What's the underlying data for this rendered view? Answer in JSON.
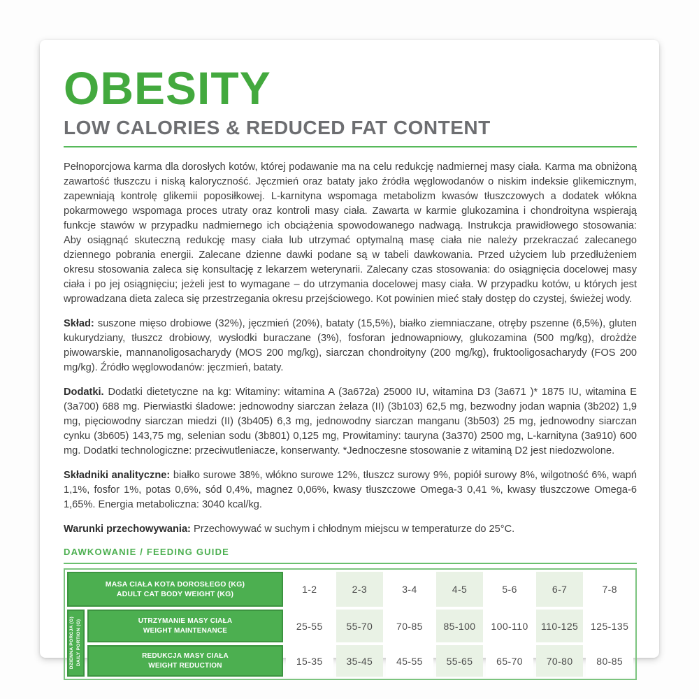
{
  "header": {
    "title": "OBESITY",
    "subtitle": "LOW CALORIES & REDUCED FAT CONTENT"
  },
  "description": "Pełnoporcjowa karma dla dorosłych kotów, której podawanie ma na celu redukcję nadmiernej masy ciała. Karma ma obniżoną zawartość tłuszczu i niską kaloryczność. Jęczmień oraz bataty jako źródła węglowodanów o niskim indeksie glikemicznym, zapewniają kontrolę glikemii poposiłkowej. L-karnityna wspomaga metabolizm kwasów tłuszczowych a dodatek włókna pokarmowego wspomaga proces utraty oraz kontroli masy ciała. Zawarta w karmie glukozamina i chondroityna wspierają funkcje stawów w przypadku nadmiernego ich obciążenia spowodowanego nadwagą. Instrukcja prawidłowego stosowania: Aby osiągnąć skuteczną redukcję masy ciała lub utrzymać optymalną masę ciała nie należy przekraczać zalecanego dziennego pobrania energii. Zalecane dzienne dawki podane są w tabeli dawkowania. Przed użyciem lub przedłużeniem okresu stosowania zaleca się konsultację z lekarzem weterynarii. Zalecany czas stosowania: do osiągnięcia docelowej masy ciała i po jej osiągnięciu; jeżeli jest to wymagane – do utrzymania docelowej masy ciała. W przypadku kotów, u których jest wprowadzana dieta zaleca się przestrzegania okresu przejściowego. Kot powinien mieć stały dostęp do czystej, świeżej wody.",
  "sections": [
    {
      "label": "Skład:",
      "text": "suszone mięso drobiowe (32%), jęczmień (20%), bataty (15,5%), białko ziemniaczane, otręby pszenne (6,5%), gluten kukurydziany, tłuszcz drobiowy, wysłodki buraczane (3%), fosforan jednowapniowy, glukozamina (500 mg/kg), drożdże piwowarskie, mannanoligosacharydy (MOS 200 mg/kg), siarczan chondroityny (200 mg/kg), fruktooligosacharydy (FOS 200 mg/kg). Źródło węglowodanów: jęczmień, bataty."
    },
    {
      "label": "Dodatki.",
      "text": "Dodatki dietetyczne na kg: Witaminy: witamina A (3a672a) 25000 IU, witamina D3 (3a671 )* 1875 IU, witamina E (3a700) 688 mg. Pierwiastki śladowe: jednowodny siarczan żelaza (II) (3b103) 62,5 mg, bezwodny jodan wapnia (3b202) 1,9 mg, pięciowodny siarczan miedzi (II) (3b405) 6,3 mg, jednowodny siarczan manganu (3b503) 25 mg, jednowodny siarczan cynku (3b605) 143,75 mg, selenian sodu (3b801) 0,125 mg, Prowitaminy: tauryna (3a370) 2500 mg, L-karnityna (3a910) 600 mg. Dodatki technologiczne: przeciwutleniacze, konserwanty. *Jednoczesne stosowanie z witaminą D2 jest niedozwolone."
    },
    {
      "label": "Składniki analityczne:",
      "text": "białko surowe 38%, włókno surowe 12%, tłuszcz surowy 9%, popiół surowy 8%, wilgotność 6%, wapń 1,1%, fosfor 1%, potas 0,6%, sód 0,4%, magnez 0,06%, kwasy tłuszczowe Omega-3 0,41 %, kwasy tłuszczowe Omega-6 1,65%. Energia metaboliczna: 3040 kcal/kg."
    },
    {
      "label": "Warunki przechowywania:",
      "text": "Przechowywać w suchym i chłodnym miejscu w temperaturze do 25°C."
    }
  ],
  "feeding_guide": {
    "heading": "DAWKOWANIE / FEEDING GUIDE",
    "weight_header_pl": "MASA CIAŁA KOTA DOROSŁEGO (kg)",
    "weight_header_en": "ADULT CAT BODY WEIGHT (kg)",
    "side_label_pl": "DZIENNA PORCJA (g)",
    "side_label_en": "DAILY PORTION (g)",
    "weights": [
      "1-2",
      "2-3",
      "3-4",
      "4-5",
      "5-6",
      "6-7",
      "7-8"
    ],
    "rows": [
      {
        "label_pl": "UTRZYMANIE MASY CIAŁA",
        "label_en": "WEIGHT MAINTENANCE",
        "values": [
          "25-55",
          "55-70",
          "70-85",
          "85-100",
          "100-110",
          "110-125",
          "125-135"
        ]
      },
      {
        "label_pl": "REDUKCJA MASY CIAŁA",
        "label_en": "WEIGHT REDUCTION",
        "values": [
          "15-35",
          "35-45",
          "45-55",
          "55-65",
          "65-70",
          "70-80",
          "80-85"
        ]
      }
    ]
  },
  "colors": {
    "green_primary": "#4caf50",
    "green_title": "#43a93e",
    "green_border_dark": "#3c9440",
    "green_rule": "#56b95a",
    "green_table_border": "#7cc47f",
    "shaded_column": "#e9f2e5",
    "subtitle_gray": "#6d6e71",
    "body_text": "#3d3d3d"
  }
}
